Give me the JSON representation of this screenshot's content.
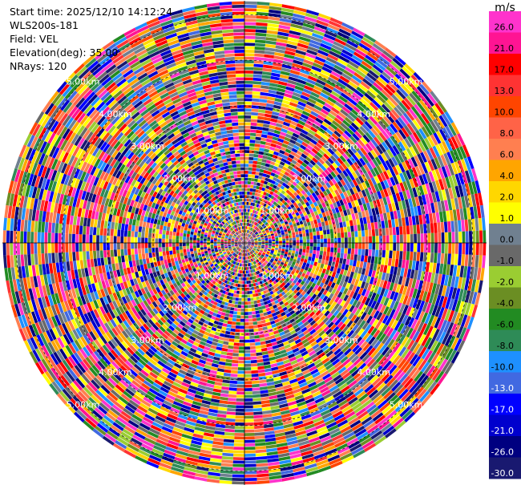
{
  "info": {
    "start_time": "Start time: 2025/12/10 14:12:24",
    "instrument": "WLS200s-181",
    "field": "Field: VEL",
    "elevation": "Elevation(deg): 35.00",
    "nrays": "NRays: 120"
  },
  "chart_data": {
    "type": "heatmap",
    "projection": "polar-ppi",
    "field": "VEL",
    "units": "m/s",
    "nrays": 120,
    "ring_labels": [
      "1.00km",
      "2.00km",
      "3.00km",
      "4.00km",
      "5.00km"
    ],
    "range_max_km": 5.3,
    "colorbar": {
      "unit": "m/s",
      "ticks": [
        "26.0",
        "21.0",
        "17.0",
        "13.0",
        "10.0",
        "8.0",
        "6.0",
        "4.0",
        "2.0",
        "1.0",
        "0.0",
        "-1.0",
        "-2.0",
        "-4.0",
        "-6.0",
        "-8.0",
        "-10.0",
        "-13.0",
        "-17.0",
        "-21.0",
        "-26.0",
        "-30.0"
      ],
      "colors": [
        "#ff33cc",
        "#ff1493",
        "#ff0000",
        "#ff3333",
        "#ff4500",
        "#ff6347",
        "#ff7f50",
        "#ffa500",
        "#ffd700",
        "#ffff00",
        "#708090",
        "#696969",
        "#9acd32",
        "#6b8e23",
        "#228b22",
        "#2e8b57",
        "#1e90ff",
        "#4169e1",
        "#0000ff",
        "#0000cd",
        "#000080",
        "#191970"
      ]
    }
  }
}
